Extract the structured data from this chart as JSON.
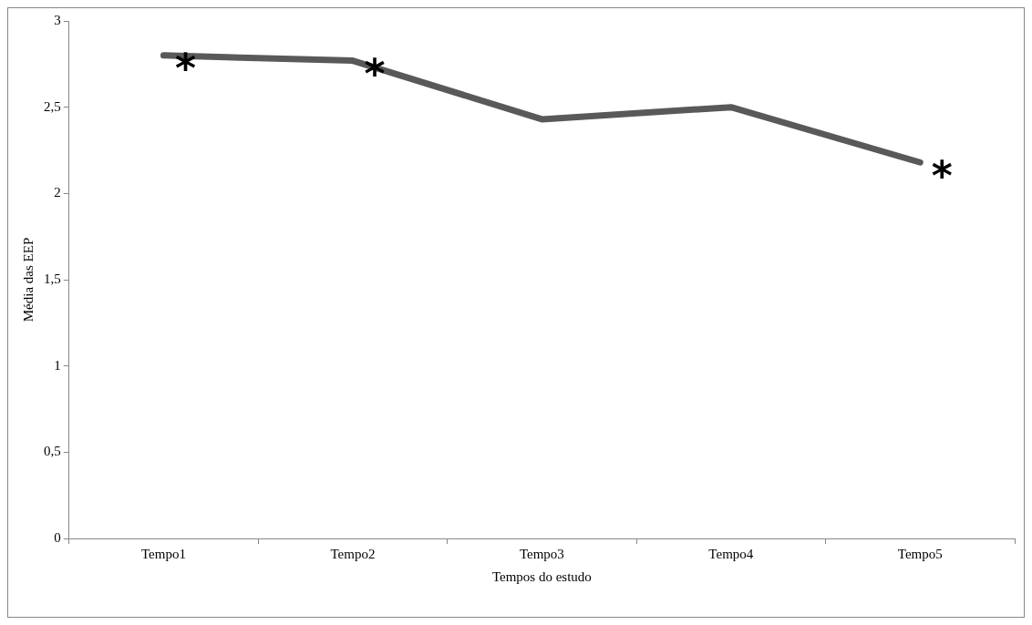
{
  "chart_data": {
    "type": "line",
    "xlabel": "Tempos do estudo",
    "ylabel": "Média das EEP",
    "categories": [
      "Tempo1",
      "Tempo2",
      "Tempo3",
      "Tempo4",
      "Tempo5"
    ],
    "series": [
      {
        "color": "#595959",
        "values": [
          2.8,
          2.77,
          2.43,
          2.5,
          2.18
        ]
      }
    ],
    "ylim": [
      0,
      3
    ],
    "yticks": [
      {
        "value": 0,
        "label": "0"
      },
      {
        "value": 0.5,
        "label": "0,5"
      },
      {
        "value": 1,
        "label": "1"
      },
      {
        "value": 1.5,
        "label": "1,5"
      },
      {
        "value": 2,
        "label": "2"
      },
      {
        "value": 2.5,
        "label": "2,5"
      },
      {
        "value": 3,
        "label": "3"
      }
    ],
    "grid": false,
    "legend": false,
    "marker": "none",
    "line_style": "solid",
    "annotations": [
      {
        "text": "*",
        "x": "Tempo1",
        "y": 2.8
      },
      {
        "text": "*",
        "x": "Tempo2",
        "y": 2.77
      },
      {
        "text": "*",
        "x": "Tempo5",
        "y": 2.18
      }
    ]
  }
}
